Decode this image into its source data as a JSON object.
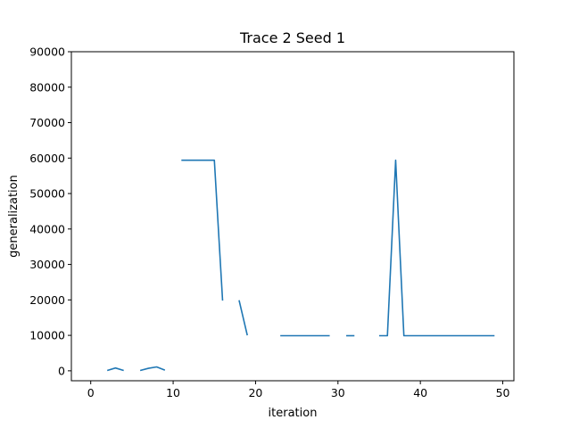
{
  "chart_data": {
    "type": "line",
    "title": "Trace 2 Seed 1",
    "xlabel": "iteration",
    "ylabel": "generalization",
    "xlim": [
      -2.35,
      51.35
    ],
    "ylim": [
      -2800,
      90000
    ],
    "xticks": [
      0,
      10,
      20,
      30,
      40,
      50
    ],
    "yticks": [
      0,
      10000,
      20000,
      30000,
      40000,
      50000,
      60000,
      70000,
      80000,
      90000
    ],
    "grid": false,
    "legend": "none",
    "series": [
      {
        "color": "#1f77b4",
        "segments": [
          [
            [
              2,
              100
            ],
            [
              3,
              800
            ],
            [
              4,
              100
            ]
          ],
          [
            [
              6,
              100
            ],
            [
              7,
              700
            ],
            [
              8,
              1100
            ],
            [
              9,
              200
            ]
          ],
          [
            [
              11,
              59400
            ],
            [
              12,
              59400
            ],
            [
              13,
              59400
            ],
            [
              14,
              59400
            ],
            [
              15,
              59400
            ],
            [
              16,
              19800
            ]
          ],
          [
            [
              18,
              19900
            ],
            [
              19,
              10000
            ]
          ],
          [
            [
              23,
              9900
            ],
            [
              24,
              9900
            ],
            [
              25,
              9900
            ],
            [
              26,
              9900
            ],
            [
              27,
              9900
            ],
            [
              28,
              9900
            ],
            [
              29,
              9900
            ]
          ],
          [
            [
              31,
              9900
            ],
            [
              32,
              9900
            ]
          ],
          [
            [
              35,
              9900
            ],
            [
              36,
              9900
            ],
            [
              37,
              59400
            ],
            [
              38,
              9900
            ],
            [
              39,
              9900
            ],
            [
              40,
              9900
            ],
            [
              41,
              9900
            ],
            [
              42,
              9900
            ],
            [
              43,
              9900
            ],
            [
              44,
              9900
            ],
            [
              45,
              9900
            ],
            [
              46,
              9900
            ],
            [
              47,
              9900
            ],
            [
              48,
              9900
            ],
            [
              49,
              9900
            ]
          ]
        ]
      }
    ]
  }
}
